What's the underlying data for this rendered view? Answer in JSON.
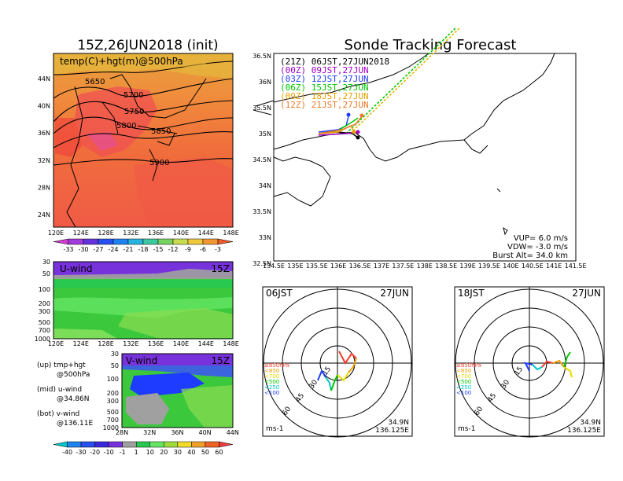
{
  "left_title": "15Z,26JUN2018 (init)",
  "right_title": "Sonde Tracking Forecast",
  "top_map": {
    "label": "temp(C)+hgt(m)@500hPa",
    "lat_ticks": [
      "44N",
      "40N",
      "36N",
      "32N",
      "28N",
      "24N"
    ],
    "lon_ticks": [
      "120E",
      "124E",
      "128E",
      "132E",
      "136E",
      "140E",
      "144E",
      "148E"
    ],
    "contours": [
      "5650",
      "5700",
      "5750",
      "5800",
      "5850",
      "5900"
    ]
  },
  "temp_colorbar": [
    "-33",
    "-30",
    "-27",
    "-24",
    "-21",
    "-18",
    "-15",
    "-12",
    "-9",
    "-6",
    "-3"
  ],
  "u_panel": {
    "title": "U-wind",
    "time": "15Z",
    "p_ticks": [
      "30",
      "50",
      "100",
      "200",
      "300",
      "500",
      "700",
      "1000"
    ],
    "x_ticks": [
      "120E",
      "124E",
      "128E",
      "132E",
      "136E",
      "140E",
      "144E",
      "148E"
    ]
  },
  "v_panel": {
    "title": "V-wind",
    "time": "15Z",
    "p_ticks": [
      "30",
      "50",
      "100",
      "200",
      "300",
      "500",
      "700",
      "1000"
    ],
    "x_ticks": [
      "28N",
      "32N",
      "36N",
      "40N",
      "44N"
    ]
  },
  "legend_text": [
    {
      "l1": "(up) tmp+hgt",
      "l2": "@500hPa"
    },
    {
      "l1": "(mid) u-wind",
      "l2": "@34.86N"
    },
    {
      "l1": "(bot) v-wind",
      "l2": "@136.11E"
    }
  ],
  "wind_colorbar": [
    "-40",
    "-30",
    "-20",
    "-10",
    "-1",
    "1",
    "10",
    "20",
    "30",
    "40",
    "50",
    "60"
  ],
  "track_map": {
    "lat_ticks": [
      "36.5N",
      "36N",
      "35.5N",
      "35N",
      "34.5N",
      "34N",
      "33.5N",
      "33N",
      "32.5N"
    ],
    "lon_ticks": [
      "134.5E",
      "135E",
      "135.5E",
      "136E",
      "136.5E",
      "137E",
      "137.5E",
      "138E",
      "138.5E",
      "139E",
      "139.5E",
      "140E",
      "140.5E",
      "141E",
      "141.5E"
    ],
    "legend": [
      {
        "label": "(21Z)  06JST,27JUN2018",
        "color": "#000000"
      },
      {
        "label": "(00Z)  09JST,27JUN",
        "color": "#a000c8"
      },
      {
        "label": "(03Z)  12JST,27JUN",
        "color": "#1e3cff"
      },
      {
        "label": "(06Z)  15JST,27JUN",
        "color": "#00c800"
      },
      {
        "label": "(09Z)  18JST,27JUN",
        "color": "#e6a000"
      },
      {
        "label": "(12Z)  21JST,27JUN",
        "color": "#f07828"
      }
    ],
    "vup": "VUP=  6.0 m/s",
    "vdw": "VDW= -3.0 m/s",
    "burst": "Burst Alt= 34.0 km"
  },
  "hodographs": [
    {
      "time": "06JST",
      "date": "27JUN",
      "lat": "34.9N",
      "lon": "136.125E",
      "unit": "ms-1",
      "rings": [
        "15",
        "30",
        "45",
        "60"
      ]
    },
    {
      "time": "18JST",
      "date": "27JUN",
      "lat": "34.9N",
      "lon": "136.125E",
      "unit": "ms-1",
      "rings": [
        "15",
        "30",
        "45",
        "60"
      ]
    }
  ],
  "hodo_levels": [
    {
      "label": "≥850hPa",
      "color": "#f03c28"
    },
    {
      "label": "<850",
      "color": "#f0a000"
    },
    {
      "label": "<700",
      "color": "#e6dc00"
    },
    {
      "label": "<500",
      "color": "#00c800"
    },
    {
      "label": "<250",
      "color": "#00c8c8"
    },
    {
      "label": "<100",
      "color": "#1e3cff"
    }
  ]
}
